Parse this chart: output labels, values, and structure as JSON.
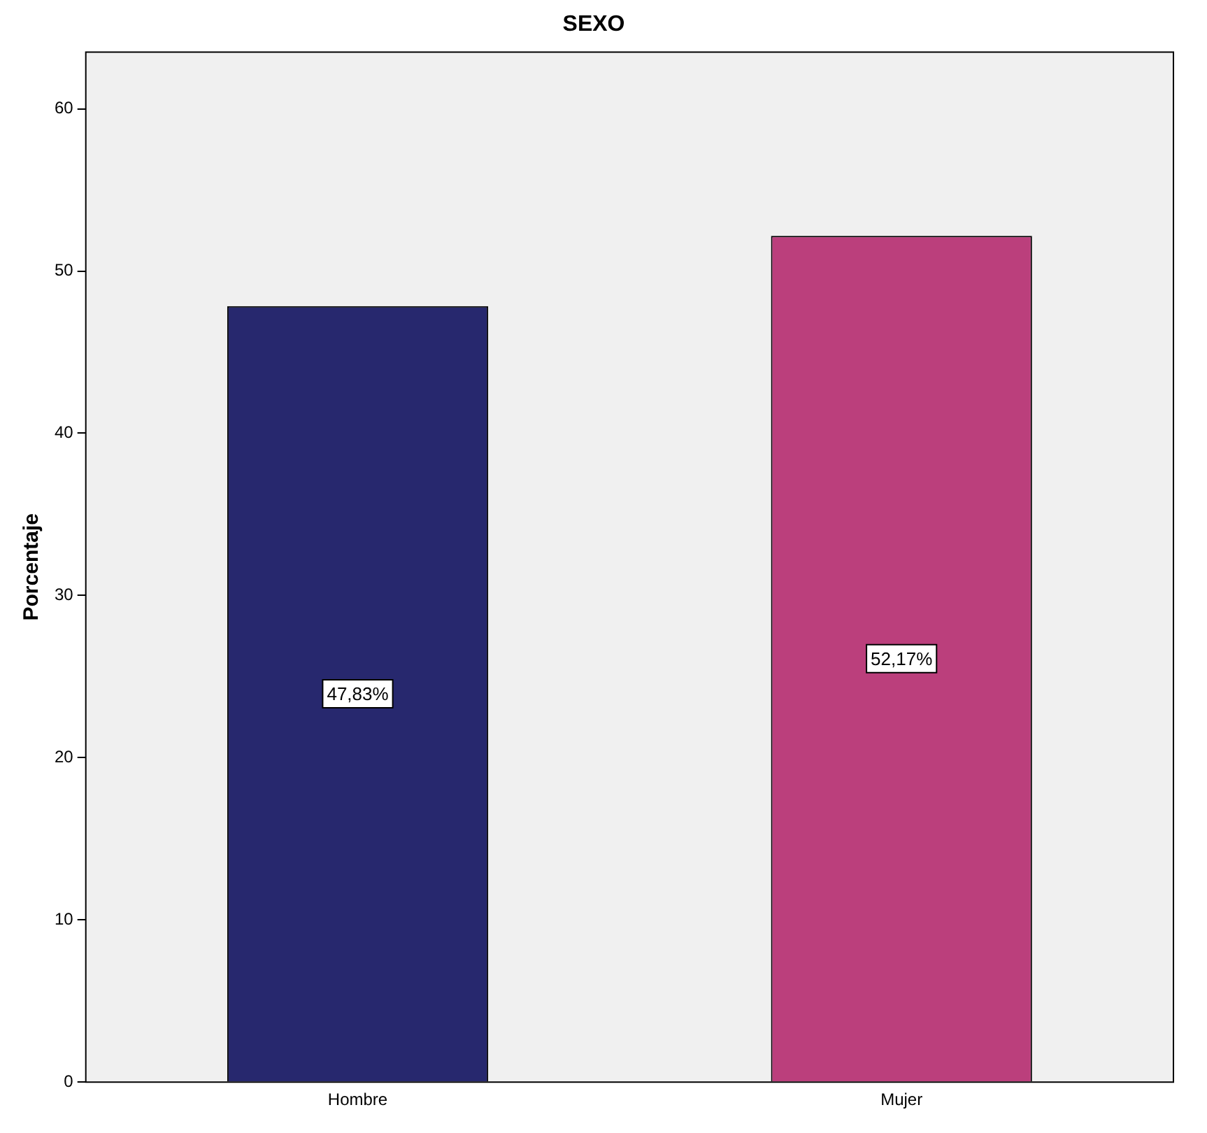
{
  "chart_data": {
    "type": "bar",
    "title": "SEXO",
    "ylabel": "Porcentaje",
    "categories": [
      "Hombre",
      "Mujer"
    ],
    "values": [
      47.83,
      52.17
    ],
    "value_labels": [
      "47,83%",
      "52,17%"
    ],
    "colors": [
      "#27286e",
      "#bb3f7c"
    ],
    "ylim": [
      0,
      63.5
    ],
    "yticks": [
      0,
      10,
      20,
      30,
      40,
      50,
      60
    ],
    "grid": false,
    "legend": false
  }
}
